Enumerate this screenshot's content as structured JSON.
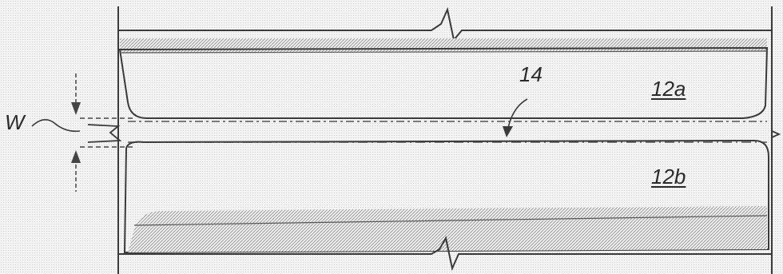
{
  "labels": {
    "gap_width": "W",
    "reference_14": "14",
    "upper_member": "12a",
    "lower_member": "12b"
  },
  "colors": {
    "line": "#3a3a3a",
    "hatch": "#9a9a9a",
    "background": "#f4f4f4"
  }
}
